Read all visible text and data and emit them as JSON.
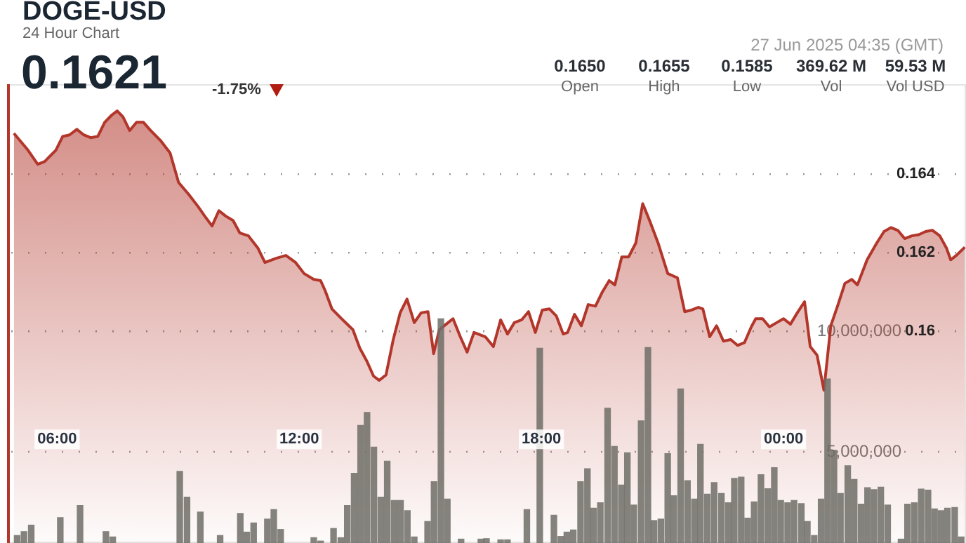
{
  "chart_data": {
    "type": "area",
    "title": "DOGE-USD",
    "subtitle": "24 Hour Chart",
    "annotations": [
      "0.1621",
      "-1.75%",
      "27 Jun 2025 04:35 (GMT)",
      "0.1650",
      "Open",
      "0.1655",
      "High",
      "0.1585",
      "Low",
      "369.62 M",
      "Vol",
      "59.53 M",
      "Vol USD"
    ],
    "xlim": [
      4.76,
      28.52
    ],
    "xticks": [
      {
        "value": 6,
        "label": "06:00"
      },
      {
        "value": 12,
        "label": "12:00"
      },
      {
        "value": 18,
        "label": "18:00"
      },
      {
        "value": 24,
        "label": "00:00"
      }
    ],
    "ylim": [
      0.15461,
      0.16629
    ],
    "yticks": [
      0.16,
      0.162,
      0.164
    ],
    "y2lim": [
      1220000,
      20230000
    ],
    "y2ticks": [
      {
        "value": 5000000,
        "label": "5,000,000"
      },
      {
        "value": 10000000,
        "label": "10,000,000"
      }
    ],
    "grid": "y",
    "series": [
      {
        "color": "#b3362b",
        "x": [
          4.93,
          5.28,
          5.52,
          5.69,
          5.97,
          6.14,
          6.31,
          6.49,
          6.66,
          6.83,
          7.01,
          7.18,
          7.35,
          7.49,
          7.63,
          7.8,
          7.97,
          8.14,
          8.32,
          8.56,
          8.8,
          9.01,
          9.25,
          9.49,
          9.66,
          9.84,
          10.01,
          10.18,
          10.36,
          10.53,
          10.74,
          10.98,
          11.15,
          11.43,
          11.67,
          11.91,
          12.12,
          12.36,
          12.53,
          12.64,
          12.81,
          13.05,
          13.33,
          13.5,
          13.67,
          13.84,
          13.98,
          14.15,
          14.33,
          14.5,
          14.67,
          14.85,
          15.02,
          15.19,
          15.33,
          15.47,
          15.64,
          15.81,
          15.99,
          16.16,
          16.33,
          16.61,
          16.81,
          16.99,
          17.16,
          17.33,
          17.51,
          17.68,
          17.85,
          18.02,
          18.2,
          18.37,
          18.54,
          18.65,
          18.82,
          18.99,
          19.16,
          19.34,
          19.51,
          19.68,
          19.82,
          19.99,
          20.16,
          20.34,
          20.51,
          20.68,
          20.89,
          21.13,
          21.37,
          21.55,
          21.72,
          21.89,
          22.0,
          22.17,
          22.34,
          22.51,
          22.69,
          22.86,
          23.03,
          23.2,
          23.31,
          23.48,
          23.65,
          23.83,
          24.0,
          24.17,
          24.34,
          24.52,
          24.66,
          24.83,
          25.0,
          25.17,
          25.35,
          25.52,
          25.69,
          25.83,
          26.07,
          26.31,
          26.49,
          26.66,
          26.83,
          27.0,
          27.18,
          27.35,
          27.52,
          27.69,
          27.87,
          28.04,
          28.14,
          28.28,
          28.49
        ],
        "values": [
          0.16504,
          0.16461,
          0.16425,
          0.16432,
          0.16461,
          0.16496,
          0.165,
          0.16514,
          0.165,
          0.16493,
          0.16496,
          0.16532,
          0.1655,
          0.16561,
          0.16546,
          0.16511,
          0.16532,
          0.16532,
          0.16511,
          0.16486,
          0.16454,
          0.16379,
          0.1635,
          0.16318,
          0.16293,
          0.16268,
          0.16307,
          0.16293,
          0.16282,
          0.1625,
          0.16243,
          0.16211,
          0.16175,
          0.16186,
          0.16193,
          0.16175,
          0.16147,
          0.16132,
          0.16129,
          0.16104,
          0.16057,
          0.16032,
          0.16004,
          0.15957,
          0.15925,
          0.15886,
          0.15875,
          0.15889,
          0.15979,
          0.16047,
          0.16082,
          0.16022,
          0.16047,
          0.1605,
          0.15943,
          0.16004,
          0.16018,
          0.16032,
          0.15986,
          0.15947,
          0.15997,
          0.15986,
          0.15961,
          0.16029,
          0.15993,
          0.16022,
          0.16029,
          0.1605,
          0.15997,
          0.16054,
          0.16057,
          0.16039,
          0.15993,
          0.15997,
          0.16043,
          0.16014,
          0.16068,
          0.16064,
          0.161,
          0.16129,
          0.16118,
          0.16189,
          0.16189,
          0.16225,
          0.16325,
          0.16282,
          0.16225,
          0.16147,
          0.16136,
          0.1605,
          0.16054,
          0.16061,
          0.16057,
          0.15986,
          0.16014,
          0.15975,
          0.15979,
          0.15964,
          0.15971,
          0.16011,
          0.16032,
          0.16032,
          0.16011,
          0.16022,
          0.16032,
          0.16018,
          0.16047,
          0.16075,
          0.15961,
          0.15939,
          0.1585,
          0.16014,
          0.16068,
          0.16122,
          0.16132,
          0.16118,
          0.16182,
          0.16225,
          0.16254,
          0.16264,
          0.16257,
          0.16236,
          0.16243,
          0.16246,
          0.16254,
          0.16257,
          0.16243,
          0.16211,
          0.16182,
          0.16193,
          0.16214
        ]
      },
      {
        "type": "bar",
        "axis": "y2",
        "color": "#6e6d66",
        "x": [
          5.01,
          5.18,
          5.36,
          6.08,
          6.57,
          7.21,
          7.38,
          9.04,
          9.22,
          9.55,
          10.04,
          10.54,
          10.7,
          10.87,
          11.21,
          11.37,
          11.54,
          12.36,
          12.53,
          12.85,
          13.03,
          13.19,
          13.36,
          13.52,
          13.68,
          13.85,
          14.02,
          14.18,
          14.35,
          14.51,
          14.68,
          14.85,
          15.18,
          15.34,
          15.51,
          15.67,
          16.01,
          16.5,
          16.64,
          16.99,
          17.16,
          17.64,
          17.96,
          18.31,
          18.48,
          18.63,
          18.79,
          18.97,
          19.14,
          19.29,
          19.46,
          19.64,
          19.81,
          19.98,
          20.13,
          20.29,
          20.47,
          20.64,
          20.79,
          20.96,
          21.13,
          21.28,
          21.45,
          21.62,
          21.79,
          21.94,
          22.11,
          22.28,
          22.46,
          22.63,
          22.78,
          22.95,
          23.11,
          23.27,
          23.44,
          23.61,
          23.77,
          23.93,
          24.1,
          24.26,
          24.44,
          24.59,
          24.76,
          24.93,
          25.09,
          25.25,
          25.41,
          25.59,
          25.75,
          25.92,
          26.08,
          26.24,
          26.41,
          26.58,
          26.91,
          27.07,
          27.24,
          27.41,
          27.58,
          27.74,
          27.9,
          28.06,
          28.24,
          28.4
        ],
        "values": [
          1530000,
          1690000,
          1960000,
          2270000,
          2770000,
          1690000,
          1470000,
          4190000,
          3120000,
          2500000,
          1530000,
          2440000,
          1670000,
          2050000,
          2210000,
          2600000,
          1780000,
          1440000,
          1300000,
          1820000,
          1440000,
          2770000,
          4110000,
          6090000,
          6630000,
          5190000,
          3120000,
          4610000,
          2980000,
          2980000,
          2560000,
          1470000,
          2110000,
          3760000,
          10510000,
          3040000,
          1380000,
          1380000,
          1400000,
          1350000,
          1350000,
          2600000,
          9290000,
          2370000,
          1490000,
          1670000,
          1760000,
          3760000,
          4300000,
          2660000,
          2890000,
          6800000,
          5220000,
          3620000,
          4960000,
          2790000,
          6280000,
          9320000,
          2150000,
          2210000,
          4920000,
          3180000,
          7600000,
          3800000,
          3040000,
          5310000,
          3240000,
          3720000,
          3270000,
          2890000,
          3900000,
          3950000,
          2250000,
          2920000,
          4050000,
          3470000,
          4340000,
          2980000,
          2890000,
          2980000,
          2850000,
          2110000,
          1530000,
          3040000,
          8020000,
          5060000,
          3270000,
          4420000,
          3850000,
          2830000,
          3510000,
          3430000,
          3530000,
          2790000,
          1380000,
          2830000,
          2890000,
          3450000,
          3410000,
          2630000,
          2560000,
          2660000,
          2690000,
          1470000
        ]
      }
    ]
  }
}
